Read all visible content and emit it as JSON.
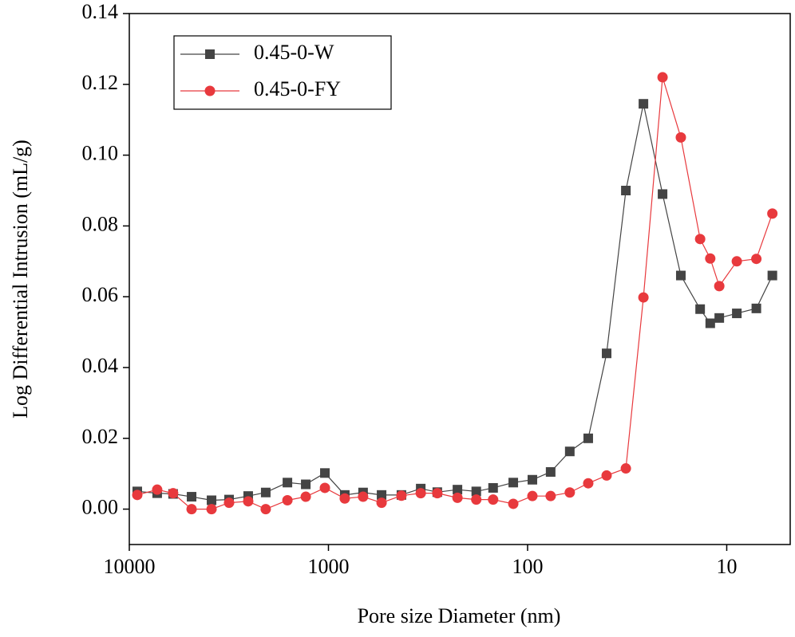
{
  "chart_data": {
    "type": "line",
    "xlabel": "Pore size Diameter (nm)",
    "ylabel": "Log Differential Intrusion (mL/g)",
    "x": [
      9120,
      7244,
      6026,
      4867,
      3864,
      3155,
      2529,
      2065,
      1607,
      1300,
      1042,
      828,
      670,
      541,
      430,
      344,
      284,
      225,
      181,
      149,
      118,
      94.6,
      76.6,
      61.4,
      49.6,
      40.1,
      32.1,
      26.2,
      21.0,
      17.0,
      13.6,
      12.1,
      10.9,
      8.9,
      7.1,
      5.9
    ],
    "series": [
      {
        "name": "0.45-0-W",
        "color": "#444444",
        "marker": "square",
        "values": [
          0.005,
          0.0045,
          0.0043,
          0.0035,
          0.0025,
          0.0027,
          0.0037,
          0.0047,
          0.0075,
          0.007,
          0.0102,
          0.004,
          0.0047,
          0.004,
          0.004,
          0.0058,
          0.0048,
          0.0055,
          0.005,
          0.006,
          0.0075,
          0.0083,
          0.0105,
          0.0163,
          0.02,
          0.044,
          0.09,
          0.1145,
          0.089,
          0.066,
          0.0565,
          0.0525,
          0.054,
          0.0553,
          0.0567,
          0.066
        ]
      },
      {
        "name": "0.45-0-FY",
        "color": "#e8393d",
        "marker": "circle",
        "values": [
          0.004,
          0.0055,
          0.0045,
          0.0,
          0.0,
          0.0018,
          0.0022,
          0.0,
          0.0025,
          0.0035,
          0.006,
          0.003,
          0.0035,
          0.0018,
          0.0038,
          0.0045,
          0.0045,
          0.0032,
          0.0027,
          0.0027,
          0.0015,
          0.0037,
          0.0037,
          0.0047,
          0.0073,
          0.0095,
          0.0115,
          0.0598,
          0.122,
          0.105,
          0.0763,
          0.0708,
          0.063,
          0.07,
          0.0707,
          0.0835
        ]
      }
    ],
    "xscale": "log",
    "xlim": [
      10000,
      4.8
    ],
    "xticks": [
      10000,
      1000,
      100,
      10
    ],
    "ylim": [
      -0.01,
      0.14
    ],
    "yticks": [
      {
        "value": 0,
        "label": "0.00"
      },
      {
        "value": 0.02,
        "label": "0.02"
      },
      {
        "value": 0.04,
        "label": "0.04"
      },
      {
        "value": 0.06,
        "label": "0.06"
      },
      {
        "value": 0.08,
        "label": "0.08"
      },
      {
        "value": 0.1,
        "label": "0.10"
      },
      {
        "value": 0.12,
        "label": "0.12"
      },
      {
        "value": 0.14,
        "label": "0.14"
      }
    ],
    "legend": "upper left"
  }
}
